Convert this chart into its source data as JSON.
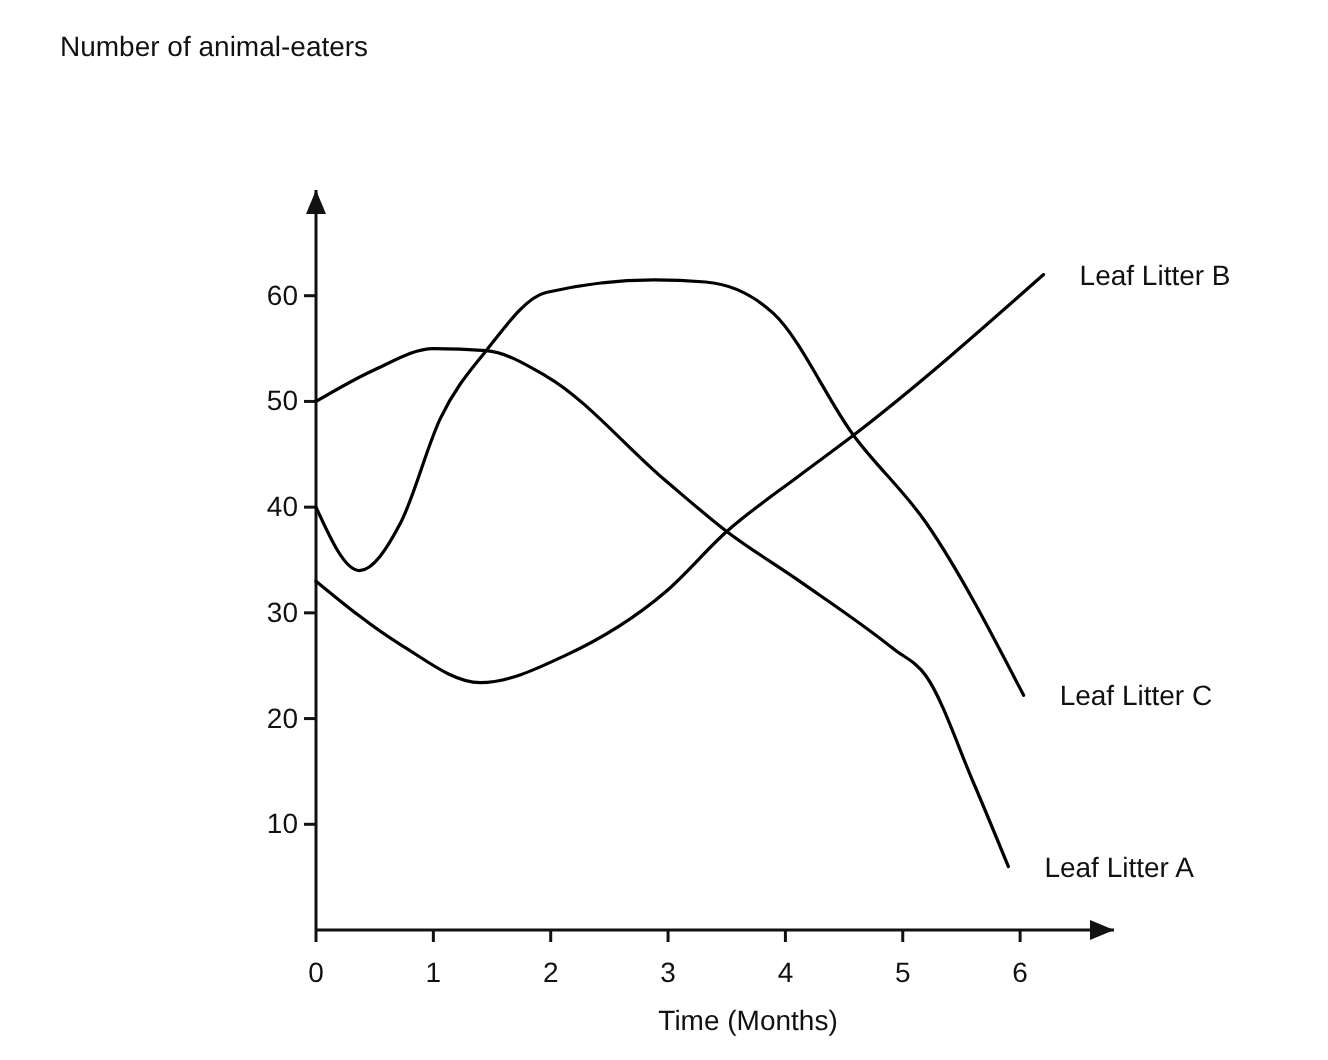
{
  "chart_data": {
    "type": "line",
    "ylabel": "Number of animal-eaters",
    "xlabel": "Time (Months)",
    "xlim": [
      0,
      6.8
    ],
    "xticks": [
      0,
      1,
      2,
      3,
      4,
      5,
      6
    ],
    "ylim": [
      0,
      70
    ],
    "yticks": [
      10,
      20,
      30,
      40,
      50,
      60
    ],
    "grid": false,
    "legend": false,
    "marker": "none",
    "line_style": "solid",
    "series": [
      {
        "name": "Leaf Litter A",
        "color": "#000000",
        "x": [
          0,
          0.5,
          1,
          1.45,
          1.96,
          2.98,
          3.5,
          4.12,
          4.92,
          5.2,
          5.6,
          5.9
        ],
        "values": [
          50,
          53,
          55,
          54.8,
          52.4,
          42.5,
          37.7,
          33,
          26.6,
          24,
          14,
          6
        ]
      },
      {
        "name": "Leaf Litter B",
        "color": "#000000",
        "x": [
          0,
          0.72,
          1.4,
          2.13,
          2.98,
          3.5,
          4.12,
          4.58,
          6.2
        ],
        "values": [
          33,
          27,
          23.4,
          26,
          32,
          37.7,
          43,
          46.8,
          62
        ]
      },
      {
        "name": "Leaf Litter C",
        "color": "#000000",
        "x": [
          0,
          0.37,
          0.72,
          1.06,
          1.45,
          1.96,
          2.88,
          3.32,
          3.9,
          4.58,
          5.2,
          6.03
        ],
        "values": [
          40,
          34,
          38.5,
          48.4,
          54.8,
          60.3,
          61.5,
          61.3,
          58.3,
          46.8,
          38.5,
          22.2
        ]
      }
    ]
  }
}
